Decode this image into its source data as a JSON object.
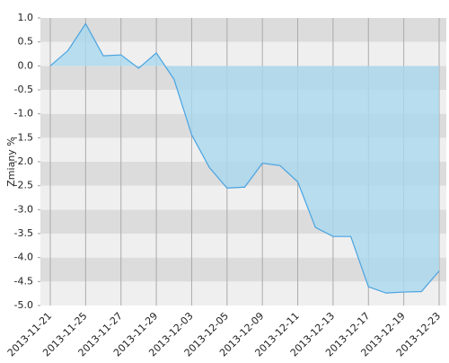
{
  "chart_data": {
    "type": "area",
    "y_label": "Zmiany %",
    "categories": [
      "2013-11-21",
      null,
      "2013-11-25",
      null,
      "2013-11-27",
      null,
      "2013-11-29",
      null,
      "2013-12-03",
      null,
      "2013-12-05",
      null,
      "2013-12-09",
      null,
      "2013-12-11",
      null,
      "2013-12-13",
      null,
      "2013-12-17",
      null,
      "2013-12-19",
      null,
      "2013-12-23"
    ],
    "values": [
      0,
      0.32,
      0.88,
      0.21,
      0.23,
      -0.05,
      0.27,
      -0.28,
      -1.44,
      -2.12,
      -2.55,
      -2.53,
      -2.03,
      -2.08,
      -2.42,
      -3.37,
      -3.56,
      -3.56,
      -4.61,
      -4.74,
      -4.72,
      -4.71,
      -4.28
    ],
    "color": "#4aa3e0",
    "fill_color": "#a9d8ef",
    "ylim": [
      -5,
      1
    ],
    "yticks": [
      {
        "value": -5,
        "label": "-5.0"
      },
      -4.5,
      {
        "value": -4,
        "label": "-4.0"
      },
      -3.5,
      {
        "value": -3,
        "label": "-3.0"
      },
      -2.5,
      {
        "value": -2,
        "label": "-2.0"
      },
      -1.5,
      {
        "value": -1,
        "label": "-1.0"
      },
      -0.5,
      {
        "value": 0,
        "label": "0.0"
      },
      0.5,
      {
        "value": 1,
        "label": "1.0"
      }
    ],
    "grid": true
  }
}
